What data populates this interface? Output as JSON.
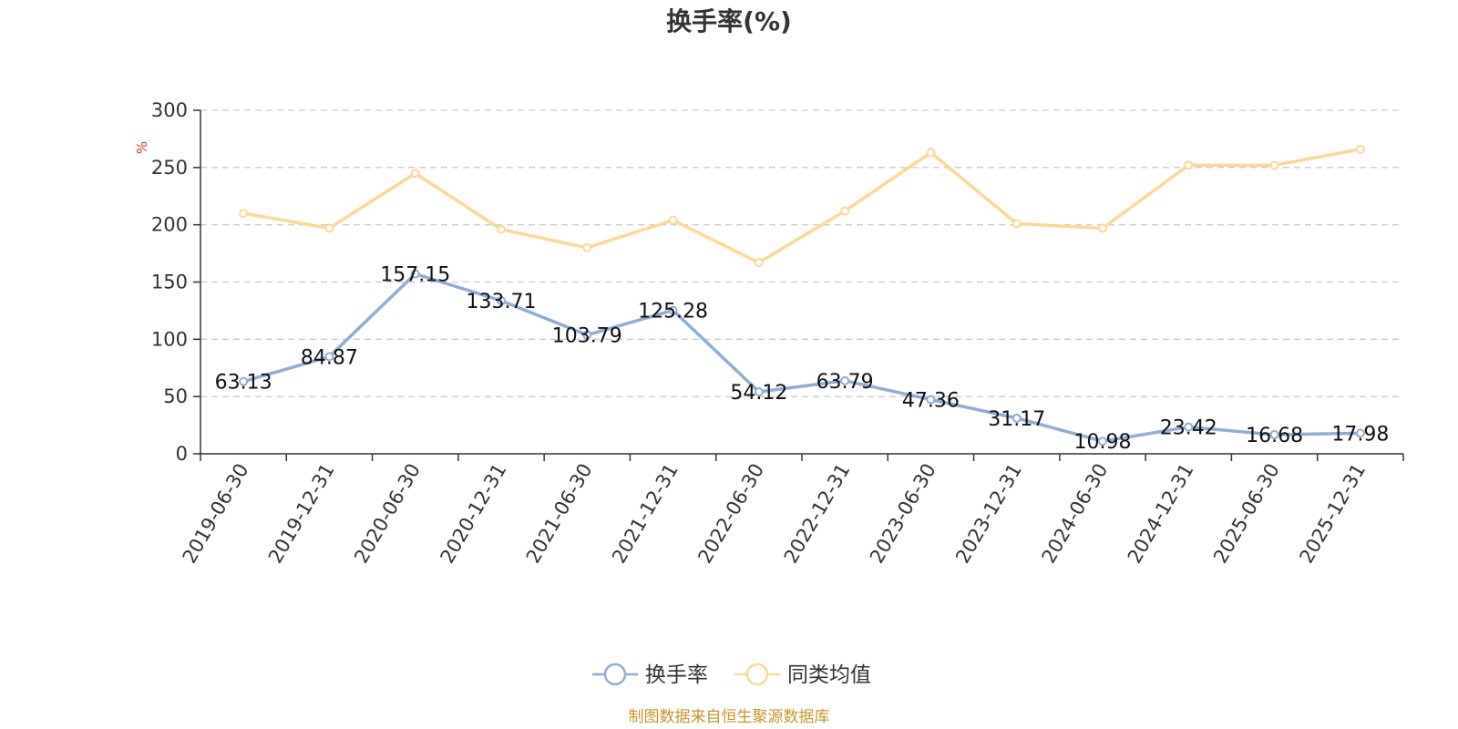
{
  "chart_data": {
    "type": "line",
    "title": "换手率(%)",
    "ylabel": "%",
    "ylim": [
      0,
      300
    ],
    "yticks": [
      0,
      50,
      100,
      150,
      200,
      250,
      300
    ],
    "grid": true,
    "legend_position": "bottom-center",
    "categories": [
      "2019-06-30",
      "2019-12-31",
      "2020-06-30",
      "2020-12-31",
      "2021-06-30",
      "2021-12-31",
      "2022-06-30",
      "2022-12-31",
      "2023-06-30",
      "2023-12-31",
      "2024-06-30",
      "2024-12-31",
      "2025-06-30",
      "2025-12-31"
    ],
    "series": [
      {
        "name": "换手率",
        "color": "#8eaed6",
        "show_labels": true,
        "values": [
          63.13,
          84.87,
          157.15,
          133.71,
          103.79,
          125.28,
          54.12,
          63.79,
          47.36,
          31.17,
          10.98,
          23.42,
          16.68,
          17.98
        ],
        "labels": [
          "63.13",
          "84.87",
          "157.15",
          "133.71",
          "103.79",
          "125.28",
          "54.12",
          "63.79",
          "47.36",
          "31.17",
          "10.98",
          "23.42",
          "16.68",
          "17.98"
        ]
      },
      {
        "name": "同类均值",
        "color": "#fcd995",
        "show_labels": false,
        "values": [
          210,
          197,
          245,
          196,
          180,
          204,
          167,
          212,
          263,
          201,
          197,
          252,
          252,
          266
        ]
      }
    ],
    "source": "制图数据来自恒生聚源数据库"
  }
}
